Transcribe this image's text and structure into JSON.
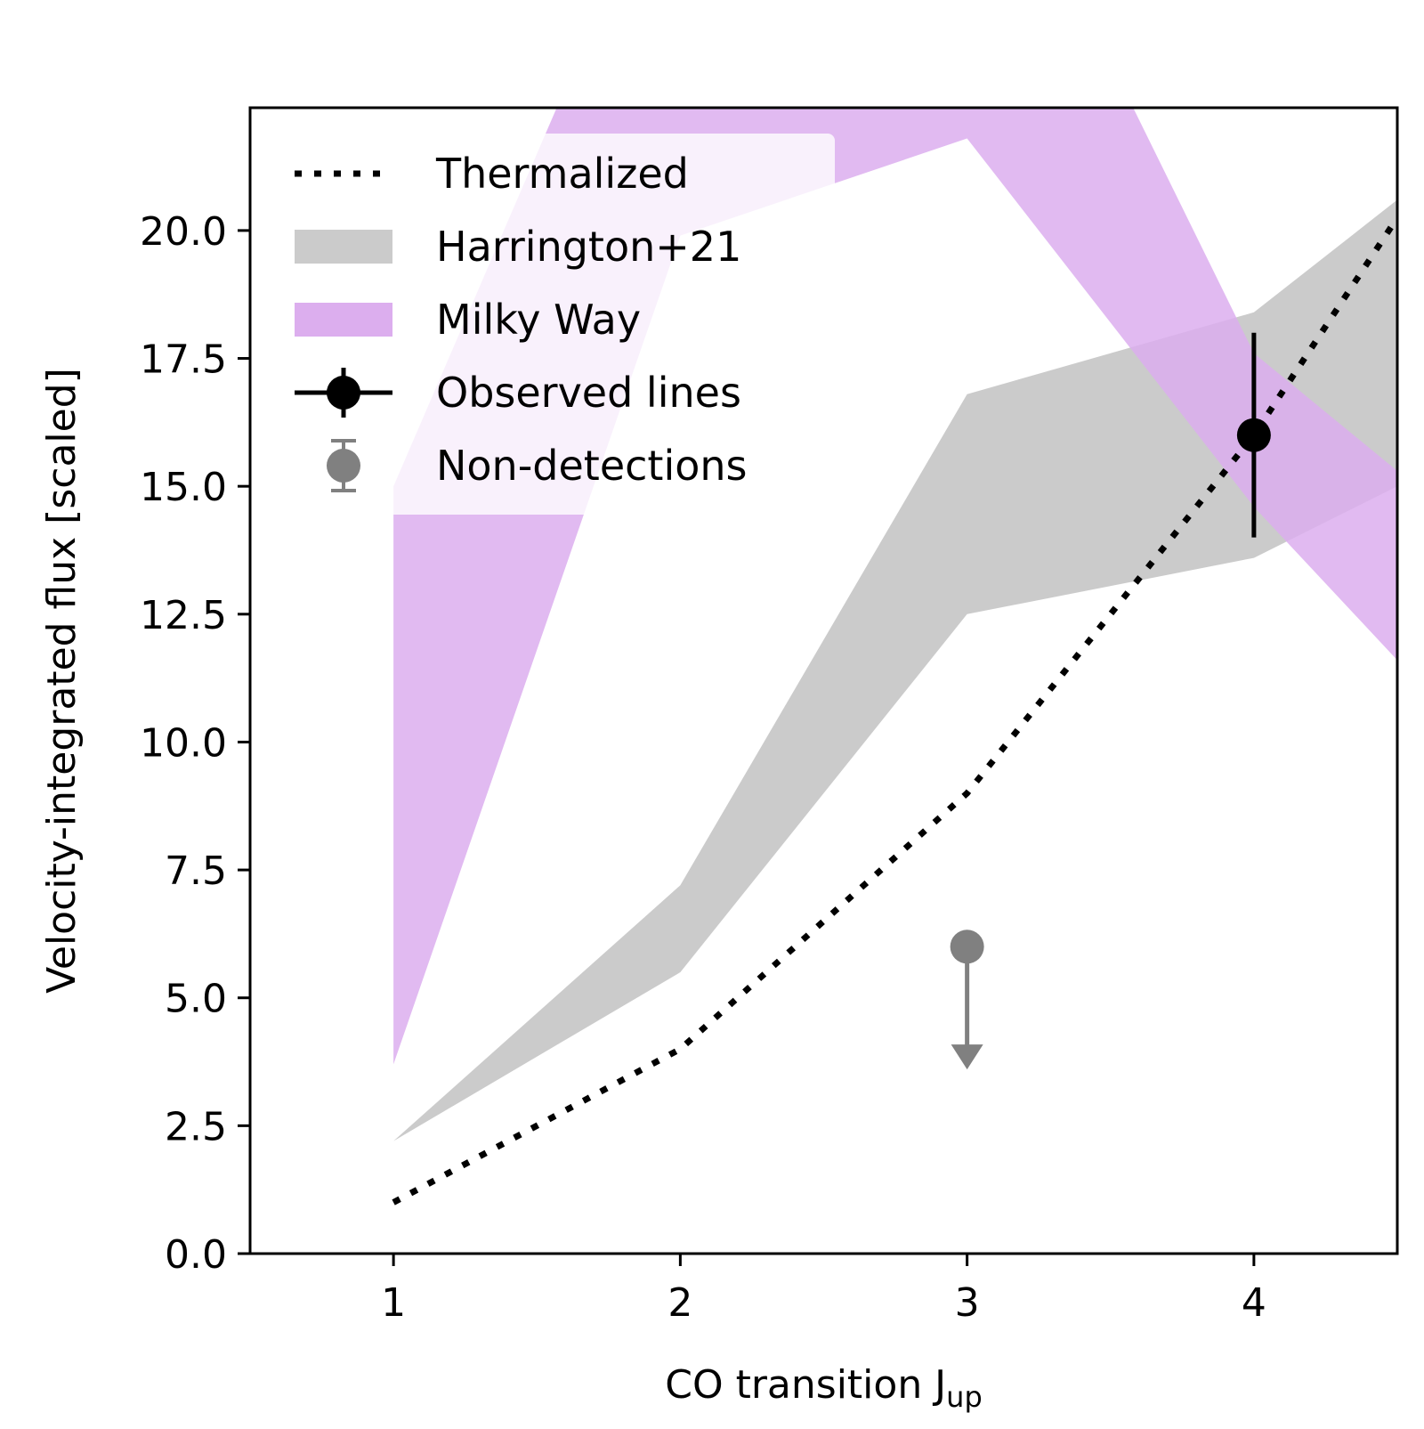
{
  "chart_data": {
    "type": "line",
    "xlabel": "CO transition J",
    "xlabel_sub": "up",
    "ylabel": "Velocity-integrated flux [scaled]",
    "xlim": [
      0.5,
      4.5
    ],
    "ylim": [
      0,
      22.4
    ],
    "xticks": [
      1,
      2,
      3,
      4
    ],
    "xtick_labels": [
      "1",
      "2",
      "3",
      "4"
    ],
    "yticks": [
      0,
      2.5,
      5,
      7.5,
      10,
      12.5,
      15,
      17.5,
      20
    ],
    "ytick_labels": [
      "0.0",
      "2.5",
      "5.0",
      "7.5",
      "10.0",
      "12.5",
      "15.0",
      "17.5",
      "20.0"
    ],
    "grid": false,
    "legend_position": "top-left",
    "series": [
      {
        "name": "Thermalized",
        "kind": "line",
        "style": "dotted",
        "color": "#000000",
        "x": [
          1,
          2,
          3,
          4,
          4.5
        ],
        "y": [
          1,
          4,
          9,
          16,
          20.25
        ]
      },
      {
        "name": "Harrington+21",
        "kind": "band",
        "color": "#cbcbcb",
        "x": [
          1,
          2,
          3,
          4,
          4.5
        ],
        "lower": [
          2.2,
          5.5,
          12.5,
          13.6,
          15.0
        ],
        "upper": [
          2.2,
          7.2,
          16.8,
          18.4,
          20.6
        ]
      },
      {
        "name": "Milky Way",
        "kind": "band",
        "color": "#dcaeee",
        "x": [
          1,
          2,
          3,
          4,
          4.5
        ],
        "lower": [
          3.7,
          19.9,
          21.8,
          14.6,
          11.6
        ],
        "upper": [
          15.0,
          28.0,
          29.0,
          17.6,
          15.3
        ]
      },
      {
        "name": "Observed lines",
        "kind": "errorbar",
        "color": "#000000",
        "x": [
          4
        ],
        "y": [
          16
        ],
        "yerr": [
          2
        ]
      },
      {
        "name": "Non-detections",
        "kind": "upper-limit",
        "color": "#808080",
        "x": [
          3
        ],
        "y": [
          6
        ],
        "arrow_to": [
          3.6
        ]
      }
    ]
  }
}
